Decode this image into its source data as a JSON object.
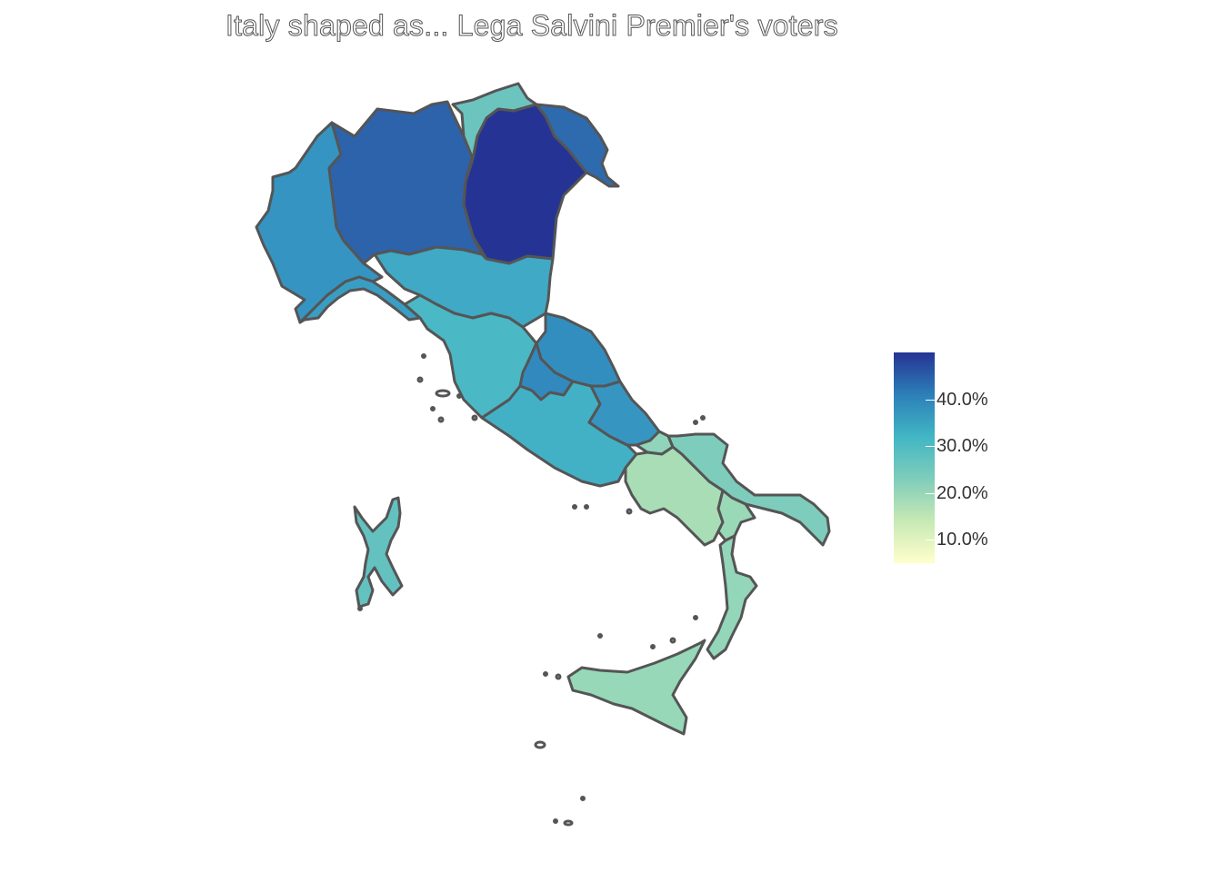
{
  "title": "Italy shaped as... Lega Salvini Premier's voters",
  "legend": {
    "min": 5,
    "max": 50,
    "ticks": [
      {
        "value": 40,
        "label": "40.0%"
      },
      {
        "value": 30,
        "label": "30.0%"
      },
      {
        "value": 20,
        "label": "20.0%"
      },
      {
        "value": 10,
        "label": "10.0%"
      }
    ],
    "gradient": [
      "#ffffcc",
      "#c7e9b4",
      "#7fcdbb",
      "#41b6c4",
      "#2c7fb8",
      "#253494"
    ]
  },
  "regions": [
    {
      "name": "veneto",
      "value": 49,
      "color": "#253494"
    },
    {
      "name": "lombardia",
      "value": 41,
      "color": "#2d63ab"
    },
    {
      "name": "friuli",
      "value": 40,
      "color": "#2e6aae"
    },
    {
      "name": "piemonte",
      "value": 33,
      "color": "#3594c2"
    },
    {
      "name": "liguria",
      "value": 31,
      "color": "#3a9ec4"
    },
    {
      "name": "emilia",
      "value": 30,
      "color": "#3fa9c6"
    },
    {
      "name": "marche",
      "value": 35,
      "color": "#338ec0"
    },
    {
      "name": "umbria",
      "value": 36,
      "color": "#3289be"
    },
    {
      "name": "toscana",
      "value": 28,
      "color": "#4ab8c5"
    },
    {
      "name": "lazio",
      "value": 30,
      "color": "#42b1c6"
    },
    {
      "name": "abruzzo",
      "value": 34,
      "color": "#3795c2"
    },
    {
      "name": "trentino",
      "value": 24,
      "color": "#6cc4bf"
    },
    {
      "name": "sardegna",
      "value": 25,
      "color": "#63c1c0"
    },
    {
      "name": "molise",
      "value": 22,
      "color": "#8fd4bb"
    },
    {
      "name": "puglia",
      "value": 22,
      "color": "#7ecdbc"
    },
    {
      "name": "campania",
      "value": 18,
      "color": "#a8ddb6"
    },
    {
      "name": "basilicata",
      "value": 20,
      "color": "#9ad9b8"
    },
    {
      "name": "calabria",
      "value": 21,
      "color": "#93d6b9"
    },
    {
      "name": "sicilia",
      "value": 21,
      "color": "#97d8b8"
    }
  ]
}
